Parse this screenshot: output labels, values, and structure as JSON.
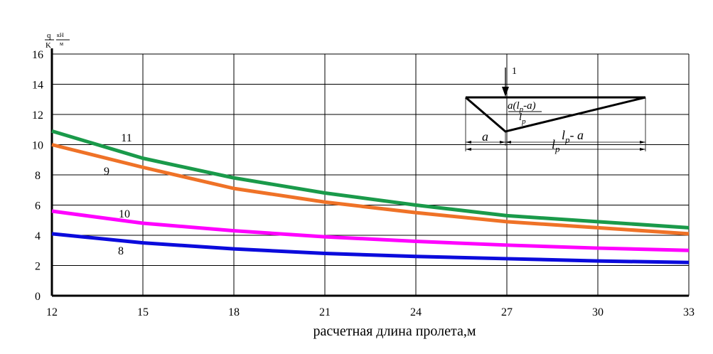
{
  "chart_data": {
    "type": "line",
    "xlabel": "расчетная длина  пролета,м",
    "ylabel": {
      "num": "q",
      "den": "K",
      "unit_num": "кН",
      "unit_den": "м"
    },
    "xlim": [
      12,
      33
    ],
    "ylim": [
      0,
      16
    ],
    "xticks": [
      "12",
      "15",
      "18",
      "21",
      "24",
      "27",
      "30",
      "33"
    ],
    "yticks": [
      "0",
      "2",
      "4",
      "6",
      "8",
      "10",
      "12",
      "14",
      "16"
    ],
    "grid": true,
    "x": [
      12,
      15,
      18,
      21,
      24,
      27,
      30,
      33
    ],
    "series": [
      {
        "name": "11",
        "color": "#1a9a4a",
        "values": [
          10.9,
          9.1,
          7.8,
          6.8,
          6.0,
          5.3,
          4.9,
          4.5
        ]
      },
      {
        "name": "9",
        "color": "#ef7227",
        "values": [
          10.0,
          8.5,
          7.1,
          6.2,
          5.5,
          4.9,
          4.5,
          4.1
        ]
      },
      {
        "name": "10",
        "color": "#ff00ff",
        "values": [
          5.6,
          4.8,
          4.3,
          3.9,
          3.6,
          3.35,
          3.15,
          3.0
        ]
      },
      {
        "name": "8",
        "color": "#0b0bdc",
        "values": [
          4.1,
          3.5,
          3.1,
          2.8,
          2.6,
          2.45,
          2.3,
          2.2
        ]
      }
    ],
    "inset": {
      "force_label": "1",
      "ordinate_label": "a(l",
      "ordinate_sub": "p",
      "ordinate_label2": "-a)",
      "ordinate_den": "l",
      "ordinate_den_sub": "p",
      "dim_a": "a",
      "dim_rest": "l",
      "dim_rest_sub": "p",
      "dim_rest2": "- a",
      "dim_total": "l",
      "dim_total_sub": "p"
    }
  }
}
